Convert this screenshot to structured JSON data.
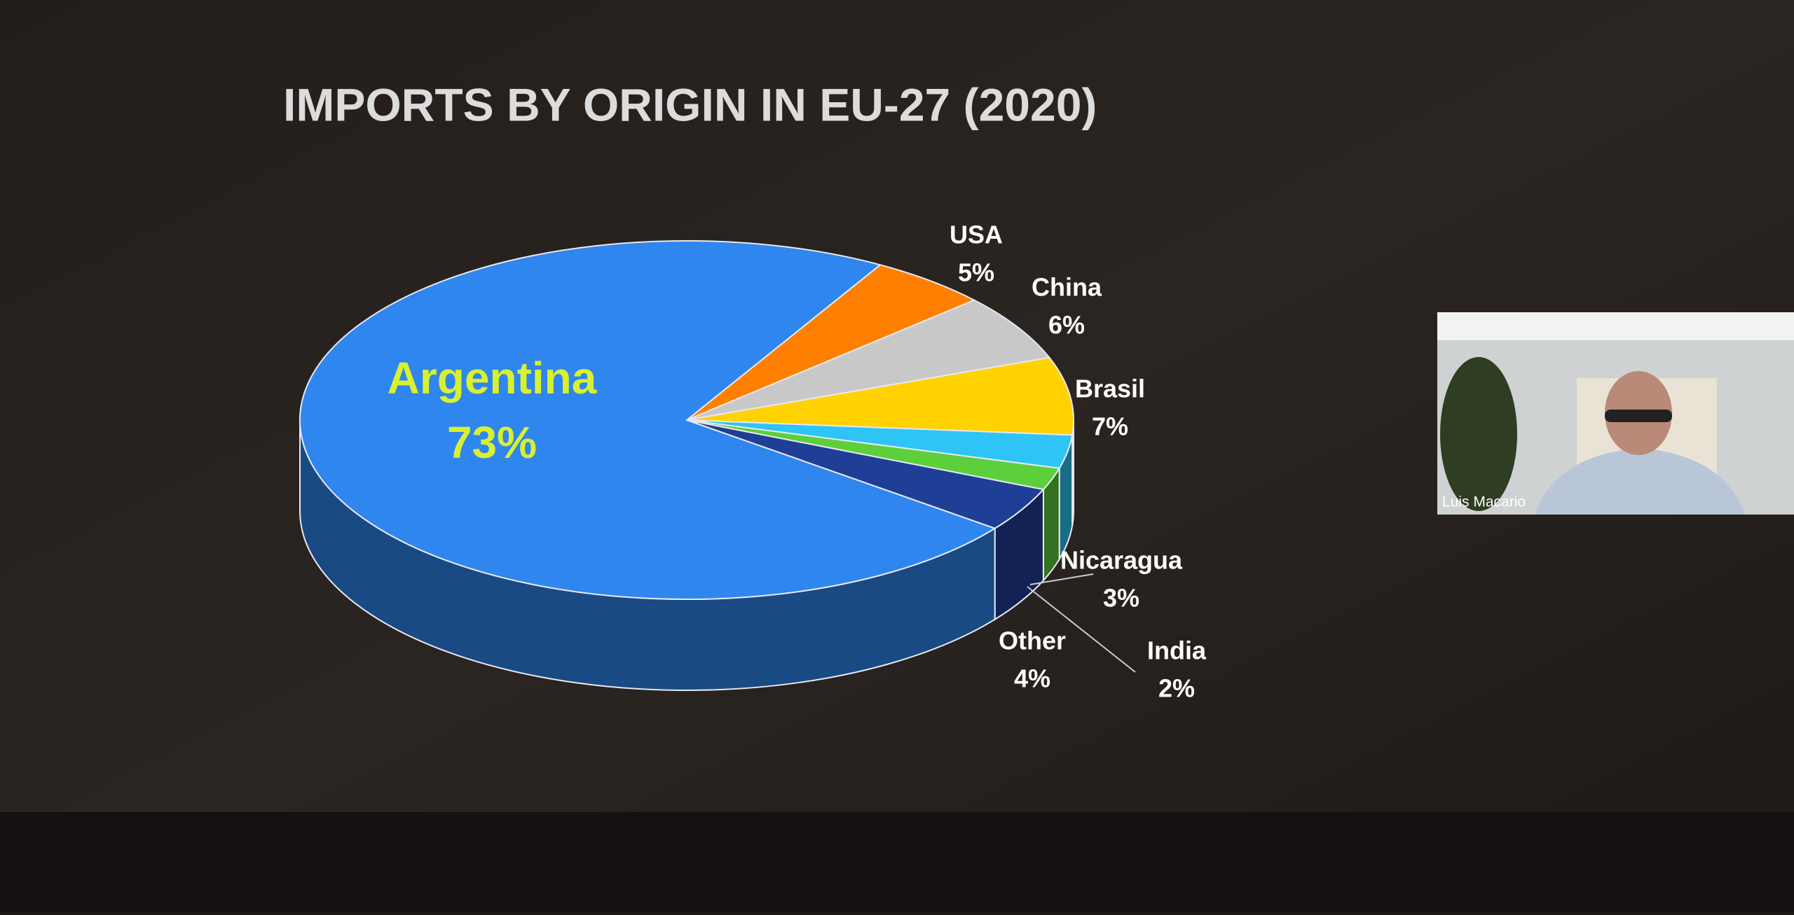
{
  "chart_data": {
    "type": "pie3d",
    "title": "IMPORTS BY ORIGIN IN EU-27 (2020)",
    "categories": [
      "USA",
      "China",
      "Brasil",
      "Nicaragua",
      "India",
      "Other",
      "Argentina"
    ],
    "values": [
      5,
      6,
      7,
      3,
      2,
      4,
      73
    ],
    "value_labels": [
      "5%",
      "6%",
      "7%",
      "3%",
      "2%",
      "4%",
      "73%"
    ],
    "colors": [
      "#ff8000",
      "#c8c8c8",
      "#ffd200",
      "#2ec4f5",
      "#5ccf3a",
      "#1f3e96",
      "#2f86ee"
    ]
  },
  "video_tile": {
    "name": "Luis Macario"
  }
}
